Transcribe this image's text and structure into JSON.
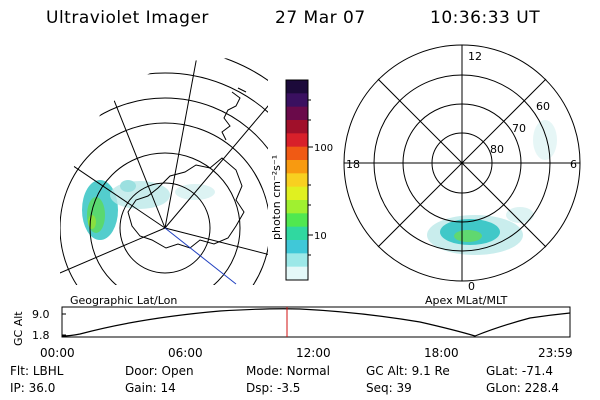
{
  "header": {
    "instrument": "Ultraviolet Imager",
    "date": "27 Mar 07",
    "time": "10:36:33 UT"
  },
  "left_panel": {
    "caption": "Geographic Lat/Lon"
  },
  "right_panel": {
    "caption": "Apex MLat/MLT",
    "mlt_labels": [
      "12",
      "18",
      "6",
      "0"
    ],
    "lat_labels": [
      "60",
      "70",
      "80"
    ]
  },
  "colorbar": {
    "unit_label": "photon cm⁻²s⁻¹",
    "ticks": [
      "100",
      "10"
    ],
    "scale": "log",
    "colors": [
      "#1c0a3a",
      "#3a1060",
      "#6a0a4a",
      "#a0102a",
      "#d8202a",
      "#f05a14",
      "#f89a10",
      "#f8d020",
      "#e0f020",
      "#a0f030",
      "#50e850",
      "#30d8a0",
      "#40c8d8",
      "#9ce8e8",
      "#e4f8f8"
    ]
  },
  "timeline": {
    "axis_label": "GC Alt",
    "y_ticks": [
      "9.0",
      "1.8"
    ],
    "x_ticks": [
      "00:00",
      "06:00",
      "12:00",
      "18:00",
      "23:59"
    ],
    "marker_time": "10:36",
    "marker_color": "#d01010"
  },
  "info": {
    "row1": [
      {
        "label": "Flt:",
        "value": "LBHL"
      },
      {
        "label": "Door:",
        "value": "Open"
      },
      {
        "label": "Mode:",
        "value": "Normal"
      },
      {
        "label": "GC Alt:",
        "value": "9.1 Re"
      },
      {
        "label": "GLat:",
        "value": "-71.4"
      }
    ],
    "row2": [
      {
        "label": "IP:",
        "value": "36.0"
      },
      {
        "label": "Gain:",
        "value": "14"
      },
      {
        "label": "Dsp:",
        "value": "-3.5"
      },
      {
        "label": "Seq:",
        "value": "39"
      },
      {
        "label": "GLon:",
        "value": "228.4"
      }
    ]
  }
}
